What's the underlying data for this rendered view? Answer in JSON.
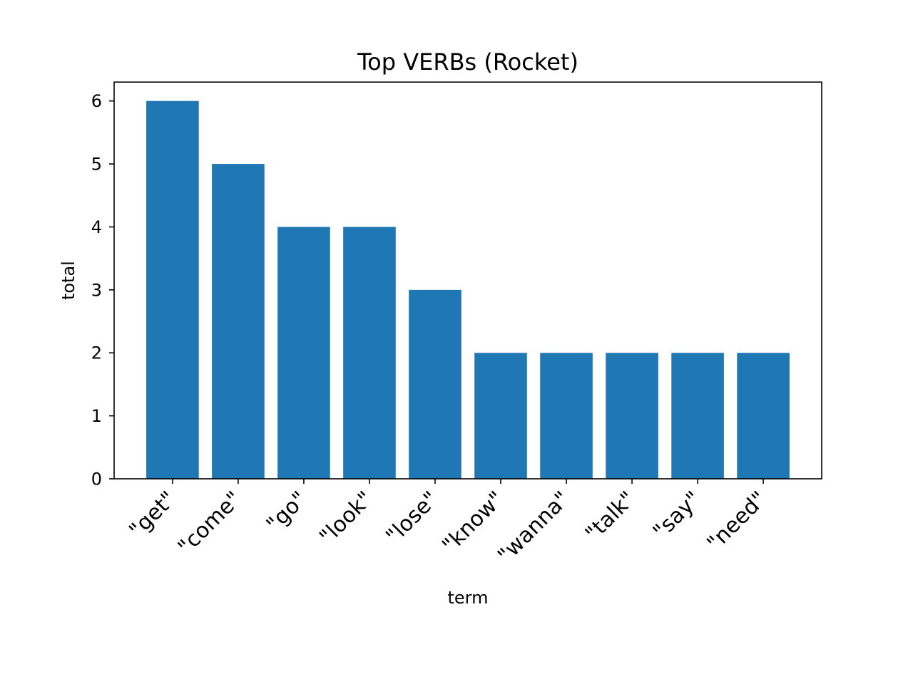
{
  "chart_data": {
    "type": "bar",
    "title": "Top VERBs (Rocket)",
    "xlabel": "term",
    "ylabel": "total",
    "categories": [
      "\"get\"",
      "\"come\"",
      "\"go\"",
      "\"look\"",
      "\"lose\"",
      "\"know\"",
      "\"wanna\"",
      "\"talk\"",
      "\"say\"",
      "\"need\""
    ],
    "values": [
      6,
      5,
      4,
      4,
      3,
      2,
      2,
      2,
      2,
      2
    ],
    "yticks": [
      0,
      1,
      2,
      3,
      4,
      5,
      6
    ],
    "ylim": [
      0,
      6.3
    ],
    "grid": false,
    "legend": "none",
    "bar_color": "#1f77b4",
    "xtick_rotation": 45
  }
}
